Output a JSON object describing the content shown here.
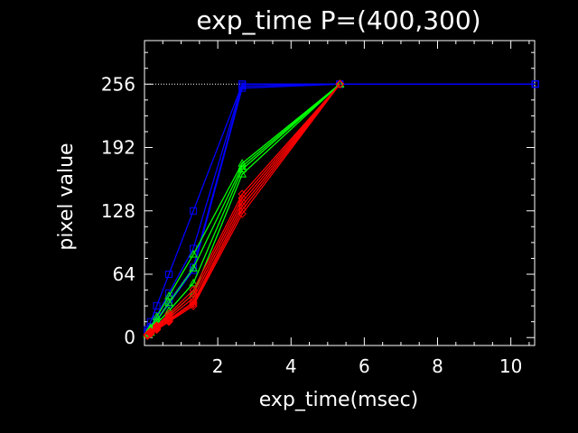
{
  "chart_data": {
    "type": "line",
    "title": "exp_time P=(400,300)",
    "xlabel": "exp_time(msec)",
    "ylabel": "pixel value",
    "xlim": [
      0,
      10.65
    ],
    "ylim": [
      -8,
      300
    ],
    "xticks": [
      2,
      4,
      6,
      8,
      10
    ],
    "yticks": [
      0,
      64,
      128,
      192,
      256
    ],
    "grid": false,
    "background_color": "#000000",
    "axis_color": "#ffffff",
    "saturation_level": 256,
    "series": [
      {
        "color": "#0000ff",
        "marker": "square",
        "lines": [
          {
            "x": [
              0.083,
              0.167,
              0.333,
              0.667,
              1.333,
              2.667,
              5.333,
              10.667
            ],
            "y": [
              4,
              8,
              17,
              34,
              68,
              252,
              256,
              256
            ]
          },
          {
            "x": [
              0.083,
              0.167,
              0.333,
              0.667,
              1.333,
              2.667,
              5.333,
              10.667
            ],
            "y": [
              5,
              9,
              18,
              36,
              71,
              254,
              256,
              256
            ]
          },
          {
            "x": [
              0.083,
              0.167,
              0.333,
              0.667,
              1.333,
              2.667,
              5.333,
              10.667
            ],
            "y": [
              6,
              11,
              22,
              45,
              90,
              256,
              256,
              256
            ]
          },
          {
            "x": [
              0.083,
              0.167,
              0.333,
              0.667,
              1.333,
              2.667,
              5.333,
              10.667
            ],
            "y": [
              8,
              16,
              32,
              64,
              128,
              256,
              256,
              256
            ]
          }
        ]
      },
      {
        "color": "#00ff00",
        "marker": "triangle",
        "lines": [
          {
            "x": [
              0.083,
              0.167,
              0.333,
              0.667,
              1.333,
              2.667,
              5.333
            ],
            "y": [
              3,
              5,
              11,
              22,
              44,
              165,
              256
            ]
          },
          {
            "x": [
              0.083,
              0.167,
              0.333,
              0.667,
              1.333,
              2.667,
              5.333
            ],
            "y": [
              4,
              7,
              14,
              27,
              55,
              170,
              256
            ]
          },
          {
            "x": [
              0.083,
              0.167,
              0.333,
              0.667,
              1.333,
              2.667,
              5.333
            ],
            "y": [
              4,
              9,
              17,
              35,
              70,
              173,
              256
            ]
          },
          {
            "x": [
              0.083,
              0.167,
              0.333,
              0.667,
              1.333,
              2.667,
              5.333
            ],
            "y": [
              5,
              10,
              21,
              42,
              84,
              176,
              256
            ]
          }
        ]
      },
      {
        "color": "#ff0000",
        "marker": "diamond",
        "lines": [
          {
            "x": [
              0.083,
              0.167,
              0.333,
              0.667,
              1.333,
              2.667,
              5.333
            ],
            "y": [
              2,
              4,
              8,
              16,
              32,
              125,
              256
            ]
          },
          {
            "x": [
              0.083,
              0.167,
              0.333,
              0.667,
              1.333,
              2.667,
              5.333
            ],
            "y": [
              2,
              4,
              9,
              17,
              34,
              129,
              256
            ]
          },
          {
            "x": [
              0.083,
              0.167,
              0.333,
              0.667,
              1.333,
              2.667,
              5.333
            ],
            "y": [
              2,
              5,
              9,
              18,
              36,
              133,
              256
            ]
          },
          {
            "x": [
              0.083,
              0.167,
              0.333,
              0.667,
              1.333,
              2.667,
              5.333
            ],
            "y": [
              3,
              5,
              10,
              20,
              40,
              137,
              256
            ]
          },
          {
            "x": [
              0.083,
              0.167,
              0.333,
              0.667,
              1.333,
              2.667,
              5.333
            ],
            "y": [
              3,
              6,
              11,
              22,
              44,
              141,
              256
            ]
          },
          {
            "x": [
              0.083,
              0.167,
              0.333,
              0.667,
              1.333,
              2.667,
              5.333
            ],
            "y": [
              3,
              6,
              12,
              24,
              48,
              145,
              256
            ]
          }
        ]
      }
    ]
  }
}
